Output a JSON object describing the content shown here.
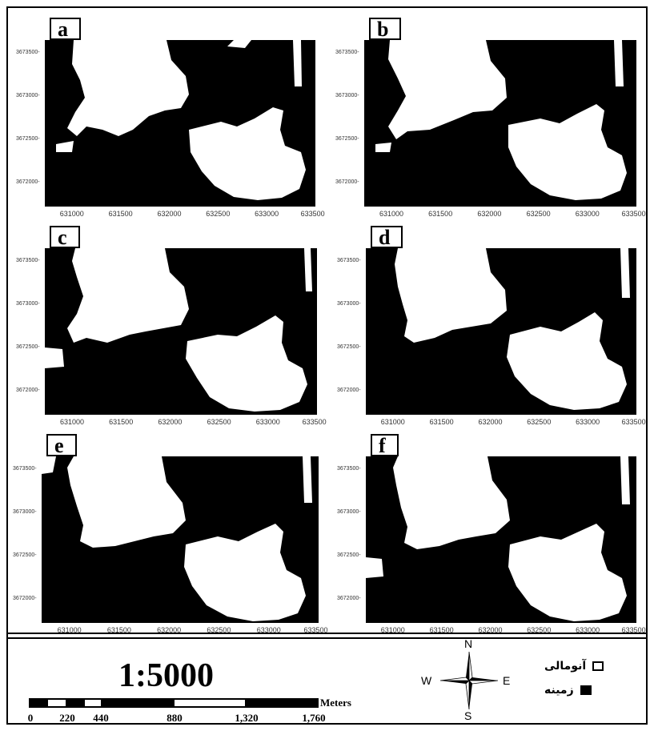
{
  "panels": [
    {
      "label": "a",
      "y_ticks": [
        "3673500",
        "3673000",
        "3672500",
        "3672000"
      ],
      "x_ticks": [
        "631000",
        "631500",
        "632000",
        "632500",
        "633000",
        "633500"
      ]
    },
    {
      "label": "b",
      "y_ticks": [
        "3673500",
        "3673000",
        "3672500",
        "3672000"
      ],
      "x_ticks": [
        "631000",
        "631500",
        "632000",
        "632500",
        "633000",
        "633500"
      ]
    },
    {
      "label": "c",
      "y_ticks": [
        "3673500",
        "3673000",
        "3672500",
        "3672000"
      ],
      "x_ticks": [
        "631000",
        "631500",
        "632000",
        "632500",
        "633000",
        "633500"
      ]
    },
    {
      "label": "d",
      "y_ticks": [
        "3673500",
        "3673000",
        "3672500",
        "3672000"
      ],
      "x_ticks": [
        "631000",
        "631500",
        "632000",
        "632500",
        "633000",
        "633500"
      ]
    },
    {
      "label": "e",
      "y_ticks": [
        "3673500",
        "3673000",
        "3672500",
        "3672000"
      ],
      "x_ticks": [
        "631000",
        "631500",
        "632000",
        "632500",
        "633000",
        "633500"
      ]
    },
    {
      "label": "f",
      "y_ticks": [
        "3673500",
        "3673000",
        "3672500",
        "3672000"
      ],
      "x_ticks": [
        "631000",
        "631500",
        "632000",
        "632500",
        "633000",
        "633500"
      ]
    }
  ],
  "scale": {
    "ratio": "1:5000",
    "unit": "Meters",
    "ticks": [
      "0",
      "220",
      "440",
      "880",
      "1,320",
      "1,760"
    ]
  },
  "compass": {
    "n": "N",
    "s": "S",
    "e": "E",
    "w": "W"
  },
  "legend": [
    {
      "label": "آنومالی",
      "swatch": "#ffffff"
    },
    {
      "label": "زمینه",
      "swatch": "#000000"
    }
  ]
}
